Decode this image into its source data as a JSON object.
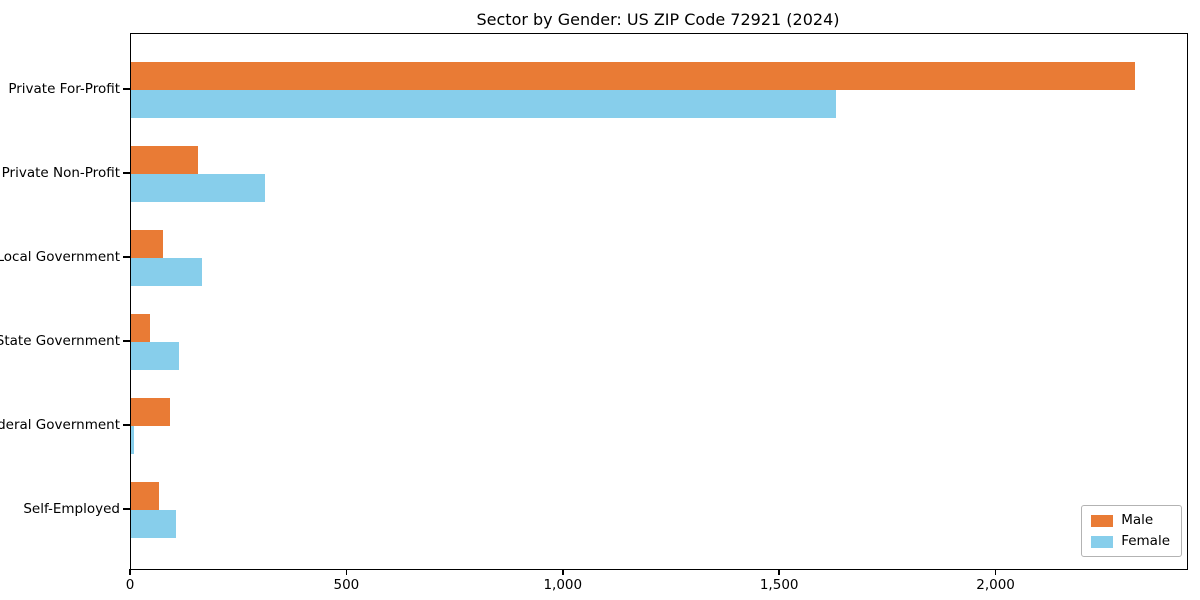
{
  "title": "Sector by Gender: US ZIP Code 72921 (2024)",
  "chart_data": {
    "type": "bar",
    "orientation": "horizontal",
    "title": "Sector by Gender: US ZIP Code 72921 (2024)",
    "categories": [
      "Private For-Profit",
      "Private Non-Profit",
      "Local Government",
      "State Government",
      "Federal Government",
      "Self-Employed"
    ],
    "series": [
      {
        "name": "Male",
        "color": "#E97B35",
        "values": [
          2320,
          155,
          75,
          45,
          90,
          65
        ]
      },
      {
        "name": "Female",
        "color": "#87CEEB",
        "values": [
          1630,
          310,
          165,
          110,
          8,
          105
        ]
      }
    ],
    "xlabel": "",
    "ylabel": "",
    "xlim": [
      0,
      2440
    ],
    "xticks": {
      "values": [
        0,
        500,
        1000,
        1500,
        2000
      ],
      "labels": [
        "0",
        "500",
        "1,000",
        "1,500",
        "2,000"
      ]
    },
    "grid": false,
    "legend": {
      "position": "lower right",
      "entries": [
        "Male",
        "Female"
      ]
    },
    "colors": {
      "male": "#E97B35",
      "female": "#87CEEB",
      "spine": "#000000",
      "background": "#ffffff"
    }
  }
}
